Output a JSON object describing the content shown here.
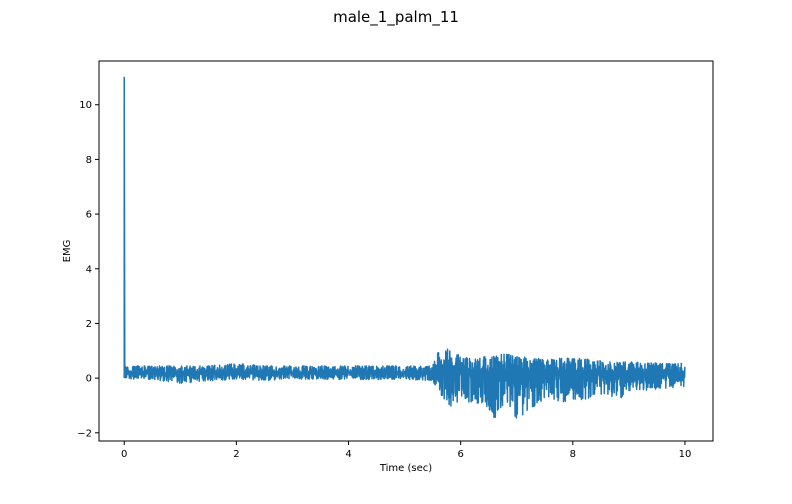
{
  "chart_data": {
    "type": "line",
    "title": "male_1_palm_11",
    "xlabel": "Time (sec)",
    "ylabel": "EMG",
    "xlim": [
      -0.45,
      10.5
    ],
    "ylim": [
      -2.3,
      11.6
    ],
    "xticks": [
      0,
      2,
      4,
      6,
      8,
      10
    ],
    "yticks": [
      -2,
      0,
      2,
      4,
      6,
      8,
      10
    ],
    "grid": false,
    "series": [
      {
        "color": "#1f77b4",
        "x": [
          0.0,
          0.01,
          0.5,
          1.0,
          1.5,
          2.0,
          2.5,
          3.0,
          3.5,
          4.0,
          4.5,
          5.0,
          5.5,
          5.6,
          5.8,
          5.9,
          6.0,
          6.2,
          6.5,
          6.65,
          6.8,
          7.0,
          7.5,
          8.0,
          8.5,
          8.9,
          9.0,
          9.5,
          10.0
        ],
        "y": [
          11.0,
          0.2,
          0.2,
          0.15,
          0.2,
          0.2,
          0.2,
          0.2,
          0.2,
          0.22,
          0.2,
          0.2,
          0.2,
          0.3,
          0.35,
          0.3,
          0.3,
          0.25,
          0.2,
          0.15,
          0.2,
          0.2,
          0.2,
          0.2,
          0.2,
          0.2,
          0.2,
          0.2,
          0.2
        ],
        "upper": [
          11.0,
          0.45,
          0.45,
          0.45,
          0.45,
          0.55,
          0.45,
          0.45,
          0.45,
          0.45,
          0.45,
          0.45,
          0.45,
          1.0,
          1.1,
          1.0,
          0.8,
          0.7,
          0.85,
          0.9,
          0.9,
          0.8,
          0.7,
          0.75,
          0.65,
          0.6,
          0.6,
          0.55,
          0.55
        ],
        "lower": [
          0.0,
          -0.05,
          -0.05,
          -0.2,
          -0.1,
          -0.05,
          -0.1,
          -0.05,
          -0.05,
          -0.05,
          -0.05,
          -0.05,
          -0.1,
          -0.5,
          -1.0,
          -1.1,
          -0.8,
          -0.9,
          -1.2,
          -1.6,
          -0.8,
          -1.5,
          -0.8,
          -0.9,
          -0.6,
          -0.75,
          -0.5,
          -0.4,
          -0.3
        ]
      }
    ]
  }
}
